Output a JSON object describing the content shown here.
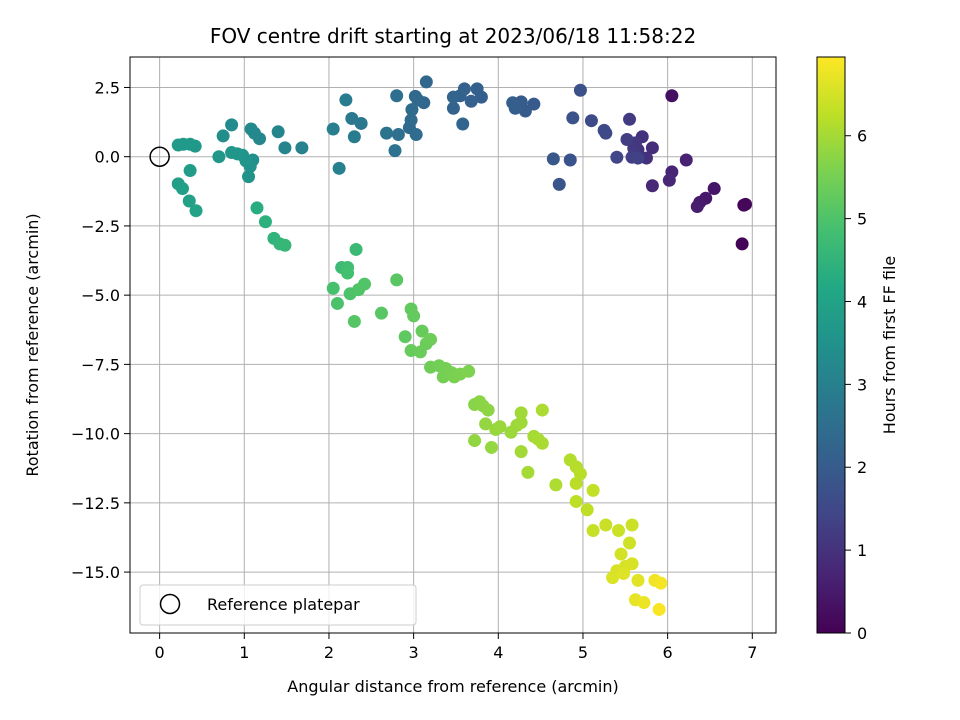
{
  "chart_data": {
    "type": "scatter",
    "title": "FOV centre drift starting at 2023/06/18 11:58:22",
    "xlabel": "Angular distance from reference (arcmin)",
    "ylabel": "Rotation from reference (arcmin)",
    "xlim": [
      -0.35,
      7.28
    ],
    "ylim": [
      -17.2,
      3.6
    ],
    "xticks": [
      "0",
      "1",
      "2",
      "3",
      "4",
      "5",
      "6",
      "7"
    ],
    "xtick_values": [
      0,
      1,
      2,
      3,
      4,
      5,
      6,
      7
    ],
    "yticks": [
      "2.5",
      "0.0",
      "−2.5",
      "−5.0",
      "−7.5",
      "−10.0",
      "−12.5",
      "−15.0"
    ],
    "ytick_values": [
      2.5,
      0,
      -2.5,
      -5,
      -7.5,
      -10,
      -12.5,
      -15
    ],
    "grid": true,
    "colormap": "viridis",
    "colorbar": {
      "label": "Hours from first FF file",
      "range": [
        0,
        6.95
      ],
      "ticks": [
        "0",
        "1",
        "2",
        "3",
        "4",
        "5",
        "6"
      ],
      "tick_values": [
        0,
        1,
        2,
        3,
        4,
        5,
        6
      ]
    },
    "legend": {
      "placement": "lower-left",
      "entries": [
        "Reference platepar"
      ]
    },
    "reference_point": {
      "x": 0,
      "y": 0
    },
    "series": [
      {
        "points": [
          [
            6.88,
            -3.15,
            0.05
          ],
          [
            6.9,
            -1.75,
            0.1
          ],
          [
            6.92,
            -1.72,
            0.12
          ],
          [
            6.05,
            2.2,
            0.3
          ],
          [
            6.55,
            -1.15,
            0.4
          ],
          [
            6.45,
            -1.5,
            0.45
          ],
          [
            6.38,
            -1.65,
            0.5
          ],
          [
            6.35,
            -1.8,
            0.55
          ],
          [
            6.22,
            -0.12,
            0.65
          ],
          [
            6.05,
            -0.55,
            0.7
          ],
          [
            6.02,
            -0.85,
            0.75
          ],
          [
            5.82,
            -1.05,
            0.8
          ],
          [
            5.82,
            0.32,
            0.9
          ],
          [
            5.75,
            -0.05,
            0.95
          ],
          [
            5.7,
            0.72,
            1.0
          ],
          [
            5.65,
            0.25,
            1.05
          ],
          [
            5.62,
            0.5,
            1.1
          ],
          [
            5.6,
            0.3,
            1.15
          ],
          [
            5.55,
            1.35,
            1.2
          ],
          [
            5.52,
            0.62,
            1.25
          ],
          [
            5.58,
            -0.02,
            1.3
          ],
          [
            5.65,
            -0.05,
            1.35
          ],
          [
            5.4,
            -0.02,
            1.45
          ],
          [
            5.27,
            0.85,
            1.5
          ],
          [
            5.25,
            0.95,
            1.55
          ],
          [
            5.1,
            1.3,
            1.6
          ],
          [
            4.97,
            2.4,
            1.7
          ],
          [
            4.88,
            1.4,
            1.75
          ],
          [
            4.85,
            -0.12,
            1.8
          ],
          [
            4.72,
            -1.0,
            1.85
          ],
          [
            4.65,
            -0.08,
            1.9
          ],
          [
            4.42,
            1.9,
            1.95
          ],
          [
            4.32,
            1.65,
            2.0
          ],
          [
            4.27,
            1.98,
            2.02
          ],
          [
            4.2,
            1.75,
            2.05
          ],
          [
            4.17,
            1.95,
            2.07
          ],
          [
            3.8,
            2.15,
            2.1
          ],
          [
            3.75,
            2.45,
            2.12
          ],
          [
            3.68,
            2.0,
            2.14
          ],
          [
            3.6,
            2.45,
            2.16
          ],
          [
            3.55,
            2.2,
            2.18
          ],
          [
            3.47,
            1.75,
            2.2
          ],
          [
            3.47,
            2.15,
            2.22
          ],
          [
            3.58,
            1.18,
            2.25
          ],
          [
            3.15,
            2.7,
            2.3
          ],
          [
            3.12,
            1.95,
            2.32
          ],
          [
            3.05,
            2.05,
            2.34
          ],
          [
            3.02,
            2.18,
            2.36
          ],
          [
            2.98,
            1.7,
            2.38
          ],
          [
            2.97,
            1.32,
            2.4
          ],
          [
            2.95,
            1.05,
            2.42
          ],
          [
            3.03,
            0.8,
            2.44
          ],
          [
            2.8,
            2.2,
            2.5
          ],
          [
            2.82,
            0.8,
            2.55
          ],
          [
            2.78,
            0.22,
            2.6
          ],
          [
            2.68,
            0.85,
            2.65
          ],
          [
            2.38,
            1.2,
            2.75
          ],
          [
            2.27,
            1.38,
            2.8
          ],
          [
            2.3,
            0.72,
            2.85
          ],
          [
            2.2,
            2.05,
            2.9
          ],
          [
            2.05,
            1.0,
            2.95
          ],
          [
            2.12,
            -0.42,
            3.0
          ],
          [
            1.68,
            0.32,
            3.05
          ],
          [
            1.48,
            0.32,
            3.1
          ],
          [
            1.4,
            0.9,
            3.15
          ],
          [
            1.18,
            0.65,
            3.2
          ],
          [
            1.12,
            0.85,
            3.22
          ],
          [
            1.08,
            1.0,
            3.24
          ],
          [
            0.85,
            1.15,
            3.3
          ],
          [
            0.75,
            0.75,
            3.35
          ],
          [
            1.1,
            -0.12,
            3.45
          ],
          [
            1.07,
            -0.35,
            3.5
          ],
          [
            1.05,
            -0.72,
            3.55
          ],
          [
            1.02,
            -0.15,
            3.58
          ],
          [
            0.98,
            0.05,
            3.6
          ],
          [
            0.92,
            0.1,
            3.62
          ],
          [
            0.85,
            0.15,
            3.64
          ],
          [
            0.7,
            0.0,
            3.66
          ],
          [
            0.42,
            0.38,
            3.7
          ],
          [
            0.36,
            0.45,
            3.72
          ],
          [
            0.28,
            0.45,
            3.74
          ],
          [
            0.22,
            0.42,
            3.76
          ],
          [
            0.36,
            -0.5,
            3.82
          ],
          [
            0.22,
            -0.98,
            3.85
          ],
          [
            0.27,
            -1.15,
            3.9
          ],
          [
            0.35,
            -1.6,
            3.95
          ],
          [
            0.43,
            -1.95,
            4.0
          ],
          [
            1.15,
            -1.85,
            4.3
          ],
          [
            1.25,
            -2.35,
            4.4
          ],
          [
            1.35,
            -2.95,
            4.5
          ],
          [
            1.42,
            -3.15,
            4.55
          ],
          [
            1.48,
            -3.2,
            4.6
          ],
          [
            2.32,
            -3.35,
            4.7
          ],
          [
            2.15,
            -4.0,
            4.75
          ],
          [
            2.22,
            -4.0,
            4.8
          ],
          [
            2.22,
            -4.2,
            4.85
          ],
          [
            2.05,
            -4.75,
            4.9
          ],
          [
            2.1,
            -5.3,
            4.95
          ],
          [
            2.25,
            -4.95,
            5.0
          ],
          [
            2.35,
            -4.8,
            5.02
          ],
          [
            2.42,
            -4.6,
            5.05
          ],
          [
            2.3,
            -5.95,
            5.1
          ],
          [
            2.62,
            -5.65,
            5.12
          ],
          [
            2.8,
            -4.45,
            5.15
          ],
          [
            2.9,
            -6.5,
            5.2
          ],
          [
            2.97,
            -5.5,
            5.25
          ],
          [
            3.0,
            -5.75,
            5.28
          ],
          [
            2.97,
            -7.0,
            5.3
          ],
          [
            3.1,
            -6.3,
            5.32
          ],
          [
            3.08,
            -7.05,
            5.35
          ],
          [
            3.15,
            -6.75,
            5.38
          ],
          [
            3.2,
            -6.6,
            5.4
          ],
          [
            3.2,
            -7.6,
            5.42
          ],
          [
            3.3,
            -7.55,
            5.45
          ],
          [
            3.38,
            -7.65,
            5.48
          ],
          [
            3.35,
            -7.95,
            5.5
          ],
          [
            3.45,
            -7.8,
            5.52
          ],
          [
            3.48,
            -7.95,
            5.55
          ],
          [
            3.55,
            -7.85,
            5.58
          ],
          [
            3.65,
            -7.75,
            5.6
          ],
          [
            3.72,
            -8.95,
            5.7
          ],
          [
            3.78,
            -8.85,
            5.72
          ],
          [
            3.82,
            -9.0,
            5.74
          ],
          [
            3.88,
            -9.15,
            5.76
          ],
          [
            3.72,
            -10.25,
            5.8
          ],
          [
            3.85,
            -9.65,
            5.82
          ],
          [
            3.92,
            -10.5,
            5.84
          ],
          [
            3.97,
            -9.85,
            5.86
          ],
          [
            4.02,
            -9.75,
            5.88
          ],
          [
            4.15,
            -9.95,
            5.9
          ],
          [
            4.22,
            -9.7,
            5.92
          ],
          [
            4.27,
            -9.6,
            5.94
          ],
          [
            4.27,
            -9.25,
            5.96
          ],
          [
            4.27,
            -10.65,
            5.98
          ],
          [
            4.35,
            -11.4,
            6.0
          ],
          [
            4.42,
            -10.1,
            6.02
          ],
          [
            4.47,
            -10.2,
            6.04
          ],
          [
            4.52,
            -10.35,
            6.06
          ],
          [
            4.52,
            -9.15,
            6.08
          ],
          [
            4.68,
            -11.85,
            6.1
          ],
          [
            4.85,
            -10.95,
            6.15
          ],
          [
            4.92,
            -11.2,
            6.18
          ],
          [
            4.97,
            -11.45,
            6.2
          ],
          [
            4.92,
            -11.8,
            6.22
          ],
          [
            4.92,
            -12.45,
            6.25
          ],
          [
            5.05,
            -12.75,
            6.28
          ],
          [
            5.12,
            -12.05,
            6.3
          ],
          [
            5.12,
            -13.5,
            6.35
          ],
          [
            5.27,
            -13.3,
            6.38
          ],
          [
            5.42,
            -13.5,
            6.4
          ],
          [
            5.58,
            -13.3,
            6.42
          ],
          [
            5.55,
            -13.95,
            6.45
          ],
          [
            5.45,
            -14.35,
            6.5
          ],
          [
            5.5,
            -14.8,
            6.52
          ],
          [
            5.4,
            -14.95,
            6.54
          ],
          [
            5.58,
            -14.7,
            6.56
          ],
          [
            5.35,
            -15.2,
            6.58
          ],
          [
            5.48,
            -15.05,
            6.6
          ],
          [
            5.65,
            -15.3,
            6.65
          ],
          [
            5.62,
            -16.0,
            6.7
          ],
          [
            5.72,
            -16.1,
            6.75
          ],
          [
            5.85,
            -15.3,
            6.8
          ],
          [
            5.92,
            -15.4,
            6.85
          ],
          [
            5.9,
            -16.35,
            6.9
          ]
        ]
      }
    ]
  }
}
